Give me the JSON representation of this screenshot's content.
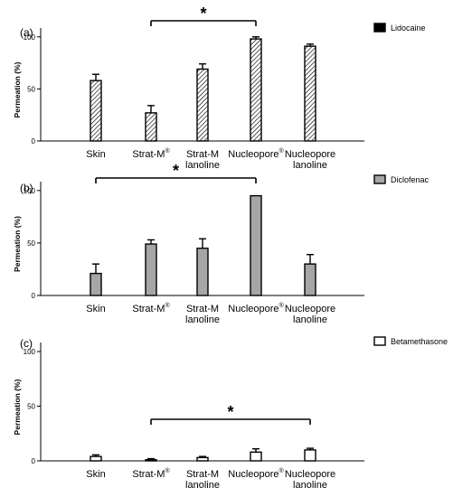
{
  "chart_data": [
    {
      "type": "bar",
      "panel_label": "(a)",
      "categories": [
        "Skin",
        "Strat-M®",
        "Strat-M lanoline",
        "Nucleopore®",
        "Nucleopore lanoline"
      ],
      "category_lines": [
        [
          "Skin"
        ],
        [
          "Strat-M®"
        ],
        [
          "Strat-M",
          "lanoline"
        ],
        [
          "Nucleopore®"
        ],
        [
          "Nucleopore",
          "lanoline"
        ]
      ],
      "series": [
        {
          "name": "Lidocaine",
          "values": [
            58,
            27,
            69,
            98,
            91
          ],
          "errors": [
            6,
            7,
            5,
            2,
            2
          ],
          "fill": "hatch"
        }
      ],
      "ylabel": "Permeation (%)",
      "ylim": [
        0,
        105
      ],
      "yticks": [
        0,
        50,
        100
      ],
      "grid": false,
      "legend_position": "top-right",
      "annotations": [
        {
          "text": "*",
          "from_category": 1,
          "to_category": 3
        }
      ]
    },
    {
      "type": "bar",
      "panel_label": "(b)",
      "categories": [
        "Skin",
        "Strat-M®",
        "Strat-M lanoline",
        "Nucleopore®",
        "Nucleopore lanoline"
      ],
      "category_lines": [
        [
          "Skin"
        ],
        [
          "Strat-M®"
        ],
        [
          "Strat-M",
          "lanoline"
        ],
        [
          "Nucleopore®"
        ],
        [
          "Nucleopore",
          "lanoline"
        ]
      ],
      "series": [
        {
          "name": "Diclofenac",
          "values": [
            21,
            49,
            45,
            95,
            30
          ],
          "errors": [
            9,
            4,
            9,
            0,
            9
          ],
          "fill": "gray"
        }
      ],
      "ylabel": "Permeation (%)",
      "ylim": [
        0,
        105
      ],
      "yticks": [
        0,
        50,
        100
      ],
      "grid": false,
      "legend_position": "top-right",
      "annotations": [
        {
          "text": "*",
          "from_category": 0,
          "to_category": 3
        }
      ]
    },
    {
      "type": "bar",
      "panel_label": "(c)",
      "categories": [
        "Skin",
        "Strat-M®",
        "Strat-M lanoline",
        "Nucleopore®",
        "Nucleopore lanoline"
      ],
      "category_lines": [
        [
          "Skin"
        ],
        [
          "Strat-M®"
        ],
        [
          "Strat-M",
          "lanoline"
        ],
        [
          "Nucleopore®"
        ],
        [
          "Nucleopore",
          "lanoline"
        ]
      ],
      "series": [
        {
          "name": "Betamethasone",
          "values": [
            4,
            1,
            3,
            8,
            10
          ],
          "errors": [
            1.5,
            1,
            1,
            3,
            1.5
          ],
          "fill": "white"
        }
      ],
      "ylabel": "Permeation (%)",
      "ylim": [
        0,
        105
      ],
      "yticks": [
        0,
        50,
        100
      ],
      "grid": false,
      "legend_position": "top-right",
      "annotations": [
        {
          "text": "*",
          "from_category": 1,
          "to_category": 4
        }
      ]
    }
  ]
}
